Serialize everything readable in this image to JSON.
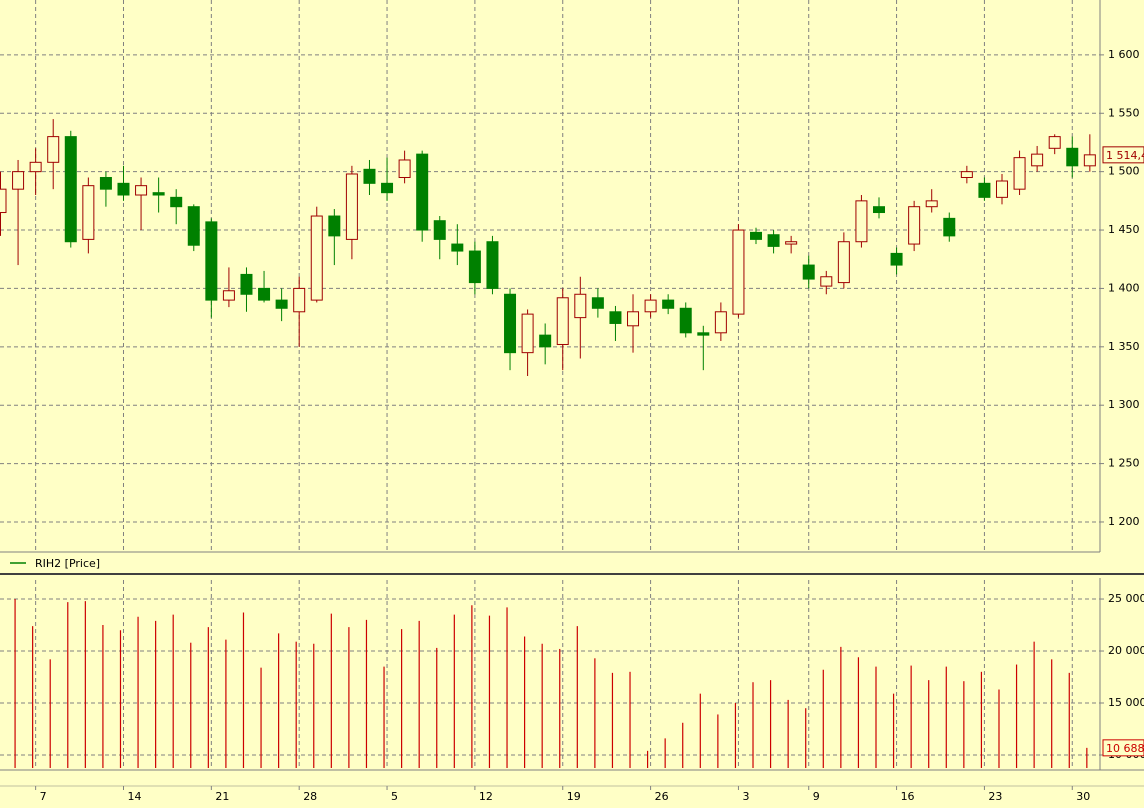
{
  "chart_data": {
    "type": "candlestick",
    "categories": [
      null,
      null,
      "7",
      null,
      null,
      null,
      null,
      "14",
      null,
      null,
      null,
      null,
      "21",
      null,
      null,
      null,
      null,
      "28",
      null,
      null,
      null,
      null,
      "5",
      null,
      null,
      null,
      null,
      "12",
      null,
      null,
      null,
      null,
      "19",
      null,
      null,
      null,
      null,
      "26",
      null,
      null,
      null,
      null,
      "3",
      null,
      null,
      null,
      "9",
      null,
      null,
      null,
      null,
      "16",
      null,
      null,
      null,
      null,
      "23",
      null,
      null,
      null,
      null,
      "30",
      null
    ],
    "series": [
      {
        "name": "RIH2 [Price]",
        "color": "#008000",
        "up_color": "#a00000",
        "down_color": "#008000",
        "open": [
          1465,
          1485,
          1500,
          1508,
          1530,
          1442,
          1495,
          1490,
          1480,
          1482,
          1478,
          1470,
          1457,
          1390,
          1412,
          1400,
          1390,
          1380,
          1390,
          1462,
          1442,
          1502,
          1490,
          1495,
          1515,
          1458,
          1438,
          1432,
          1440,
          1395,
          1345,
          1360,
          1352,
          1375,
          1392,
          1380,
          1368,
          1380,
          1390,
          1383,
          1362,
          1362,
          1378,
          1448,
          1446,
          1438,
          1420,
          1402,
          1405,
          1440,
          1470,
          1430,
          1438,
          1470,
          1460,
          1495,
          1490,
          1478,
          1485,
          1505,
          1520,
          1520,
          1505
        ],
        "high": [
          1500,
          1510,
          1520,
          1545,
          1535,
          1495,
          1500,
          1505,
          1495,
          1495,
          1485,
          1472,
          1460,
          1418,
          1418,
          1415,
          1400,
          1410,
          1470,
          1468,
          1505,
          1510,
          1512,
          1518,
          1518,
          1462,
          1455,
          1440,
          1445,
          1400,
          1382,
          1370,
          1400,
          1410,
          1400,
          1385,
          1395,
          1395,
          1395,
          1388,
          1368,
          1388,
          1455,
          1452,
          1450,
          1445,
          1428,
          1415,
          1448,
          1480,
          1478,
          1435,
          1475,
          1485,
          1465,
          1505,
          1495,
          1498,
          1518,
          1522,
          1532,
          1530,
          1532
        ],
        "low": [
          1445,
          1420,
          1480,
          1485,
          1435,
          1430,
          1470,
          1475,
          1450,
          1465,
          1455,
          1432,
          1375,
          1384,
          1380,
          1388,
          1372,
          1350,
          1388,
          1420,
          1425,
          1480,
          1475,
          1490,
          1440,
          1425,
          1420,
          1395,
          1395,
          1330,
          1325,
          1335,
          1330,
          1340,
          1375,
          1355,
          1345,
          1375,
          1378,
          1358,
          1330,
          1355,
          1375,
          1438,
          1430,
          1430,
          1400,
          1395,
          1400,
          1435,
          1460,
          1412,
          1432,
          1465,
          1440,
          1490,
          1475,
          1472,
          1480,
          1500,
          1515,
          1495,
          1500
        ],
        "close": [
          1485,
          1500,
          1508,
          1530,
          1440,
          1488,
          1485,
          1480,
          1488,
          1480,
          1470,
          1437,
          1390,
          1398,
          1395,
          1390,
          1383,
          1400,
          1462,
          1445,
          1498,
          1490,
          1482,
          1510,
          1450,
          1442,
          1432,
          1405,
          1400,
          1345,
          1378,
          1350,
          1392,
          1395,
          1383,
          1370,
          1380,
          1390,
          1383,
          1362,
          1360,
          1380,
          1450,
          1442,
          1436,
          1440,
          1408,
          1410,
          1440,
          1475,
          1465,
          1420,
          1470,
          1475,
          1445,
          1500,
          1478,
          1492,
          1512,
          1515,
          1530,
          1505,
          1514.4
        ],
        "last_label": "1 514,4"
      }
    ],
    "ylim": [
      1176,
      1647
    ],
    "yticks": [
      {
        "value": 1200,
        "label": "1 200"
      },
      {
        "value": 1250,
        "label": "1 250"
      },
      {
        "value": 1300,
        "label": "1 300"
      },
      {
        "value": 1350,
        "label": "1 350"
      },
      {
        "value": 1400,
        "label": "1 400"
      },
      {
        "value": 1450,
        "label": "1 450"
      },
      {
        "value": 1500,
        "label": "1 500"
      },
      {
        "value": 1550,
        "label": "1 550"
      },
      {
        "value": 1600,
        "label": "1 600"
      }
    ],
    "grid": true,
    "volume": {
      "type": "bar",
      "color": "#cc0000",
      "values": [
        null,
        25000,
        22400,
        19200,
        24700,
        24800,
        22500,
        22000,
        23300,
        22900,
        23500,
        20800,
        22300,
        21100,
        23700,
        18400,
        21700,
        20900,
        20700,
        23600,
        22300,
        23000,
        18500,
        22100,
        22900,
        20300,
        23500,
        24400,
        23400,
        24200,
        21400,
        20700,
        20200,
        22400,
        19300,
        17900,
        18000,
        10400,
        11600,
        13100,
        15900,
        13900,
        15000,
        17000,
        17200,
        15300,
        14500,
        18200,
        20400,
        19400,
        18500,
        15900,
        18600,
        17200,
        18500,
        17100,
        18000,
        16300,
        18700,
        20900,
        19200,
        17900,
        10688
      ],
      "last_label": "10 688",
      "ylim": [
        8750,
        26830
      ],
      "yticks": [
        {
          "value": 10000,
          "label": "10 000"
        },
        {
          "value": 15000,
          "label": "15 000"
        },
        {
          "value": 20000,
          "label": "20 000"
        },
        {
          "value": 25000,
          "label": "25 000"
        }
      ]
    }
  }
}
